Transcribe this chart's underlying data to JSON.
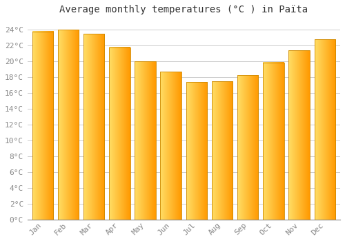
{
  "title": "Average monthly temperatures (°C ) in Païta",
  "months": [
    "Jan",
    "Feb",
    "Mar",
    "Apr",
    "May",
    "Jun",
    "Jul",
    "Aug",
    "Sep",
    "Oct",
    "Nov",
    "Dec"
  ],
  "values": [
    23.8,
    24.0,
    23.5,
    21.8,
    20.0,
    18.7,
    17.4,
    17.5,
    18.3,
    19.9,
    21.4,
    22.8
  ],
  "bar_color_left": "#FFD966",
  "bar_color_right": "#FFA500",
  "bar_edge_color": "#CC8800",
  "background_color": "#FFFFFF",
  "grid_color": "#CCCCCC",
  "ytick_labels": [
    "0°C",
    "2°C",
    "4°C",
    "6°C",
    "8°C",
    "10°C",
    "12°C",
    "14°C",
    "16°C",
    "18°C",
    "20°C",
    "22°C",
    "24°C"
  ],
  "ytick_values": [
    0,
    2,
    4,
    6,
    8,
    10,
    12,
    14,
    16,
    18,
    20,
    22,
    24
  ],
  "ylim": [
    0,
    25.5
  ],
  "title_fontsize": 10,
  "tick_fontsize": 8,
  "tick_color": "#888888",
  "figsize": [
    5.0,
    3.5
  ],
  "dpi": 100
}
